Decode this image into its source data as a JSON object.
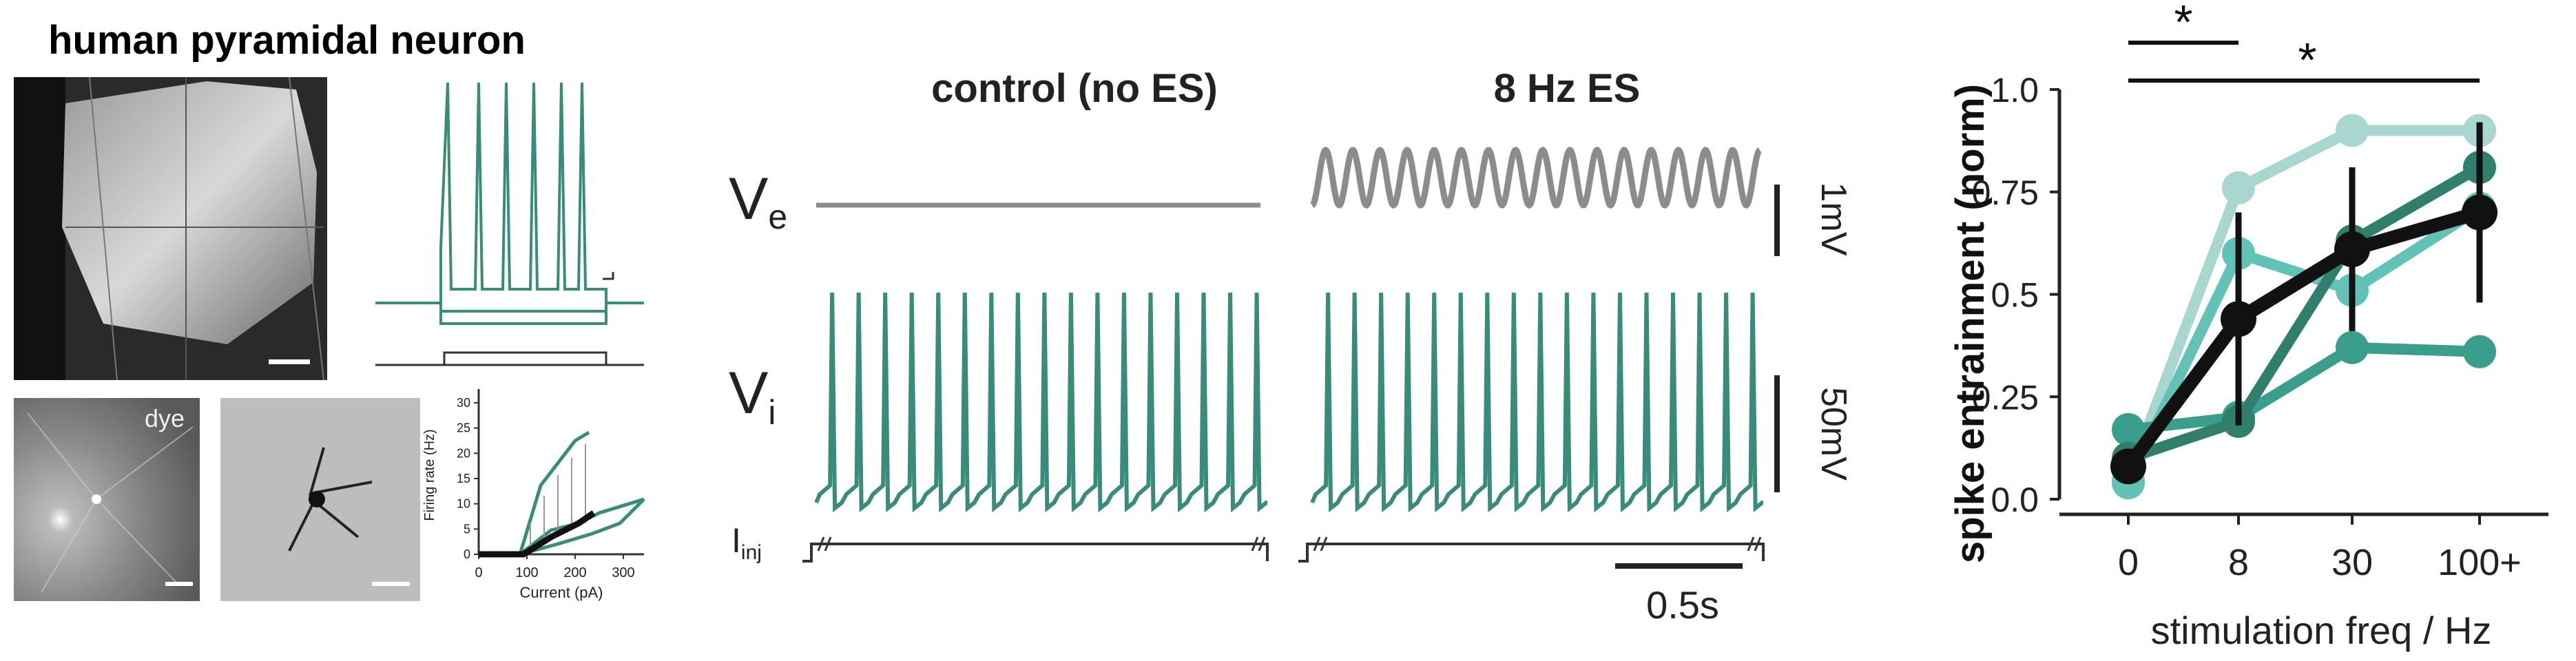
{
  "panel_a": {
    "title": "human pyramidal neuron",
    "dye_label": "dye",
    "fi_plot": {
      "ylabel": "Firing rate (Hz)",
      "xlabel": "Current (pA)",
      "xticks": [
        "0",
        "100",
        "200",
        "300"
      ],
      "yticks": [
        "0",
        "5",
        "10",
        "15",
        "20",
        "25",
        "30"
      ]
    }
  },
  "panel_b": {
    "condition_control": "control (no ES)",
    "condition_es": "8 Hz ES",
    "ve_label": "V",
    "ve_sub": "e",
    "vi_label": "V",
    "vi_sub": "i",
    "iinj_label": "I",
    "iinj_sub": "inj",
    "scale_ve": "1mV",
    "scale_vi": "50mV",
    "scale_time": "0.5s"
  },
  "colors": {
    "trace_teal": "#3a8c7a",
    "ve_gray": "#8c8c8c",
    "mean_black": "#111111"
  },
  "chart_data": {
    "type": "line",
    "title": "",
    "xlabel": "stimulation freq / Hz",
    "ylabel": "spike entrainment (norm)",
    "categories": [
      "0",
      "8",
      "30",
      "100+"
    ],
    "yticks": [
      "0.0",
      "0.25",
      "0.5",
      "0.75",
      "1.0"
    ],
    "ylim": [
      0,
      1
    ],
    "series": [
      {
        "values": [
          0.05,
          0.76,
          0.9,
          0.9
        ],
        "color": "#a9d6cf",
        "width": 16
      },
      {
        "values": [
          0.04,
          0.6,
          0.51,
          0.71
        ],
        "color": "#63c2b7",
        "width": 16
      },
      {
        "values": [
          0.17,
          0.2,
          0.37,
          0.36
        ],
        "color": "#3a9e8c",
        "width": 16
      },
      {
        "values": [
          0.1,
          0.19,
          0.63,
          0.81
        ],
        "color": "#2f7f6c",
        "width": 16
      },
      {
        "values": [
          0.08,
          0.44,
          0.61,
          0.7
        ],
        "color": "#111111",
        "width": 20,
        "errors": [
          0.04,
          0.26,
          0.2,
          0.22
        ]
      }
    ],
    "significance": [
      {
        "from": "0",
        "to": "8",
        "label": "*"
      },
      {
        "from": "0",
        "to": "100+",
        "label": "*"
      }
    ]
  }
}
